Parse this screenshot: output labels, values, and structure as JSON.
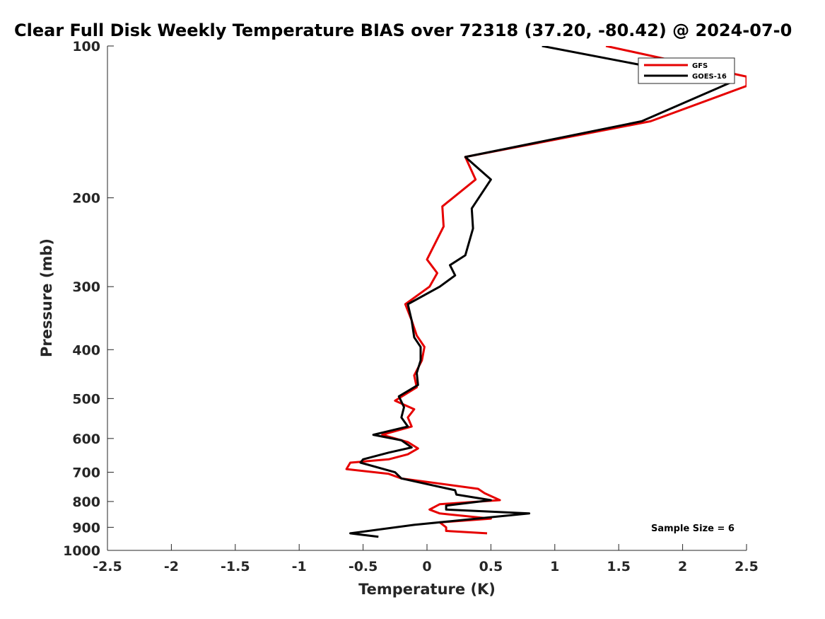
{
  "chart_data": {
    "type": "line",
    "title": "Clear Full Disk Weekly Temperature BIAS over 72318 (37.20, -80.42) @ 2024-07-0",
    "xlabel": "Temperature (K)",
    "ylabel": "Pressure (mb)",
    "xlim": [
      -2.5,
      2.5
    ],
    "ylim": [
      1000,
      100
    ],
    "y_scale": "log",
    "y_reversed": true,
    "grid": false,
    "legend_position": "top-right",
    "x_ticks": [
      -2.5,
      -2,
      -1.5,
      -1,
      -0.5,
      0,
      0.5,
      1,
      1.5,
      2,
      2.5
    ],
    "x_tick_labels": [
      "-2.5",
      "-2",
      "-1.5",
      "-1",
      "-0.5",
      "0",
      "0.5",
      "1",
      "1.5",
      "2",
      "2.5"
    ],
    "y_ticks": [
      100,
      200,
      300,
      400,
      500,
      600,
      700,
      800,
      900,
      1000
    ],
    "y_tick_labels": [
      "100",
      "200",
      "300",
      "400",
      "500",
      "600",
      "700",
      "800",
      "900",
      "1000"
    ],
    "annotation": "Sample Size = 6",
    "series": [
      {
        "name": "GFS",
        "color": "#e60000",
        "points": [
          [
            1.4,
            100
          ],
          [
            2.5,
            115
          ],
          [
            2.5,
            120
          ],
          [
            1.75,
            141
          ],
          [
            0.3,
            166
          ],
          [
            0.38,
            184
          ],
          [
            0.12,
            208
          ],
          [
            0.13,
            228
          ],
          [
            0.0,
            265
          ],
          [
            0.08,
            282
          ],
          [
            0.02,
            300
          ],
          [
            -0.17,
            325
          ],
          [
            -0.12,
            350
          ],
          [
            -0.08,
            375
          ],
          [
            -0.02,
            395
          ],
          [
            -0.04,
            420
          ],
          [
            -0.1,
            450
          ],
          [
            -0.08,
            475
          ],
          [
            -0.25,
            505
          ],
          [
            -0.1,
            525
          ],
          [
            -0.15,
            545
          ],
          [
            -0.12,
            568
          ],
          [
            -0.35,
            590
          ],
          [
            -0.15,
            610
          ],
          [
            -0.07,
            628
          ],
          [
            -0.15,
            645
          ],
          [
            -0.3,
            660
          ],
          [
            -0.6,
            670
          ],
          [
            -0.63,
            690
          ],
          [
            -0.3,
            705
          ],
          [
            -0.2,
            720
          ],
          [
            0.4,
            755
          ],
          [
            0.45,
            770
          ],
          [
            0.57,
            795
          ],
          [
            0.1,
            810
          ],
          [
            0.02,
            830
          ],
          [
            0.1,
            845
          ],
          [
            0.5,
            865
          ],
          [
            0.1,
            880
          ],
          [
            0.15,
            900
          ],
          [
            0.15,
            915
          ],
          [
            0.47,
            925
          ]
        ]
      },
      {
        "name": "GOES-16",
        "color": "#000000",
        "points": [
          [
            0.9,
            100
          ],
          [
            2.38,
            118
          ],
          [
            1.68,
            141
          ],
          [
            0.3,
            166
          ],
          [
            0.5,
            184
          ],
          [
            0.35,
            210
          ],
          [
            0.36,
            230
          ],
          [
            0.3,
            260
          ],
          [
            0.18,
            272
          ],
          [
            0.22,
            285
          ],
          [
            0.1,
            300
          ],
          [
            -0.15,
            325
          ],
          [
            -0.12,
            350
          ],
          [
            -0.1,
            378
          ],
          [
            -0.05,
            395
          ],
          [
            -0.05,
            420
          ],
          [
            -0.08,
            445
          ],
          [
            -0.07,
            470
          ],
          [
            -0.22,
            495
          ],
          [
            -0.18,
            520
          ],
          [
            -0.2,
            545
          ],
          [
            -0.15,
            568
          ],
          [
            -0.42,
            590
          ],
          [
            -0.2,
            605
          ],
          [
            -0.12,
            625
          ],
          [
            -0.3,
            640
          ],
          [
            -0.5,
            660
          ],
          [
            -0.52,
            670
          ],
          [
            -0.25,
            700
          ],
          [
            -0.2,
            720
          ],
          [
            0.22,
            760
          ],
          [
            0.23,
            775
          ],
          [
            0.5,
            795
          ],
          [
            0.15,
            815
          ],
          [
            0.15,
            830
          ],
          [
            0.8,
            845
          ],
          [
            -0.1,
            890
          ],
          [
            -0.6,
            925
          ],
          [
            -0.38,
            940
          ]
        ]
      }
    ]
  }
}
